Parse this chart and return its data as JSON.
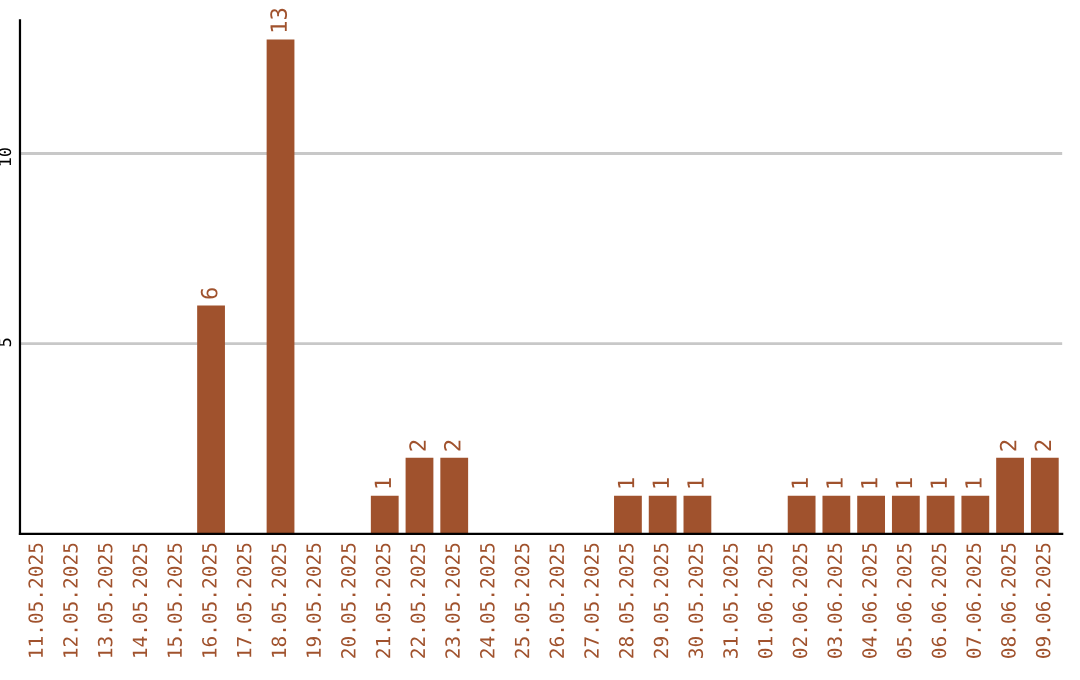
{
  "chart_data": {
    "type": "bar",
    "categories": [
      "11.05.2025",
      "12.05.2025",
      "13.05.2025",
      "14.05.2025",
      "15.05.2025",
      "16.05.2025",
      "17.05.2025",
      "18.05.2025",
      "19.05.2025",
      "20.05.2025",
      "21.05.2025",
      "22.05.2025",
      "23.05.2025",
      "24.05.2025",
      "25.05.2025",
      "26.05.2025",
      "27.05.2025",
      "28.05.2025",
      "29.05.2025",
      "30.05.2025",
      "31.05.2025",
      "01.06.2025",
      "02.06.2025",
      "03.06.2025",
      "04.06.2025",
      "05.06.2025",
      "06.06.2025",
      "07.06.2025",
      "08.06.2025",
      "09.06.2025"
    ],
    "values": [
      0,
      0,
      0,
      0,
      0,
      6,
      0,
      13,
      0,
      0,
      1,
      2,
      2,
      0,
      0,
      0,
      0,
      1,
      1,
      1,
      0,
      0,
      1,
      1,
      1,
      1,
      1,
      1,
      2,
      2
    ],
    "value_labels": [
      null,
      null,
      null,
      null,
      null,
      "6",
      null,
      "13",
      null,
      null,
      "1",
      "2",
      "2",
      null,
      null,
      null,
      null,
      "1",
      "1",
      "1",
      null,
      null,
      "1",
      "1",
      "1",
      "1",
      "1",
      "1",
      "2",
      "2"
    ],
    "color": "#a0522d",
    "ylim": [
      0,
      13.5
    ],
    "yticks": [
      5,
      10
    ],
    "grid": "y",
    "legend": false
  }
}
